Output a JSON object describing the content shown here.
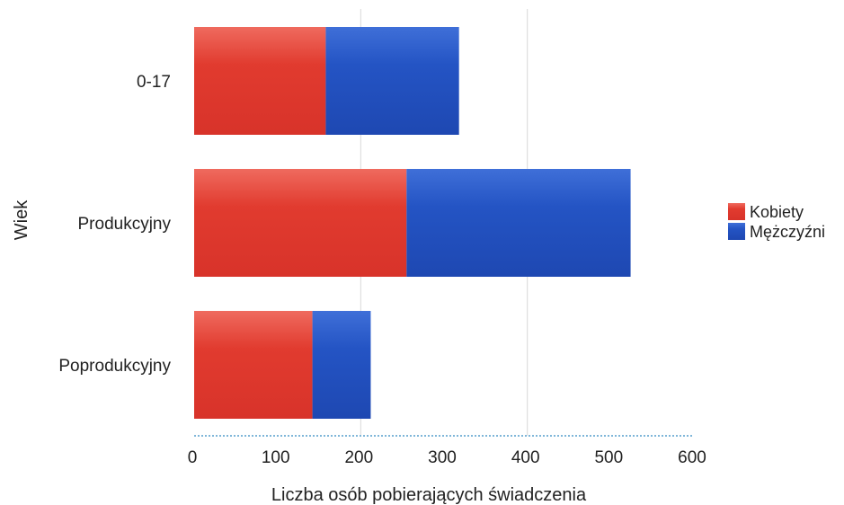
{
  "chart_data": {
    "type": "bar",
    "orientation": "horizontal",
    "stacked": true,
    "categories": [
      "0-17",
      "Produkcyjny",
      "Poprodukcyjny"
    ],
    "series": [
      {
        "name": "Kobiety",
        "color": "#e03a2e",
        "values": [
          158,
          255,
          142
        ]
      },
      {
        "name": "Mężczyźni",
        "color": "#1f4fbf",
        "values": [
          160,
          269,
          70
        ]
      }
    ],
    "xlabel": "Liczba osób pobierających świadczenia",
    "ylabel": "Wiek",
    "xlim": [
      0,
      600
    ],
    "xticks": [
      "0",
      "100",
      "200",
      "300",
      "400",
      "500",
      "600"
    ],
    "grid": "vertical-at-200-and-400",
    "legend": "right"
  }
}
